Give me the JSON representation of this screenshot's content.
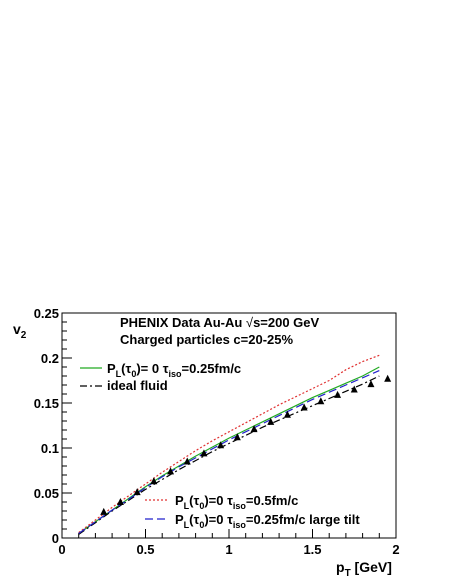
{
  "chart_data": {
    "type": "line",
    "title": "",
    "xlabel": "p_T [GeV]",
    "ylabel": "v_2",
    "xlim": [
      0,
      2
    ],
    "ylim": [
      0,
      0.25
    ],
    "x_ticks": [
      "0",
      "0.5",
      "1",
      "1.5",
      "2"
    ],
    "y_ticks": [
      "0",
      "0.05",
      "0.1",
      "0.15",
      "0.2",
      "0.25"
    ],
    "grid": false,
    "annotations": [
      "PHENIX Data Au-Au √s=200 GeV",
      "Charged particles   c=20-25%"
    ],
    "legend_top": [
      {
        "series": 0,
        "label": "P_L(τ_0)= 0  τ_iso=0.25fm/c"
      },
      {
        "series": 1,
        "label": "ideal fluid"
      }
    ],
    "legend_bottom": [
      {
        "series": 2,
        "label": "P_L(τ_0)=0  τ_iso=0.5fm/c"
      },
      {
        "series": 3,
        "label": "P_L(τ_0)=0  τ_iso=0.25fm/c  large tilt"
      }
    ],
    "series": [
      {
        "style": "solid",
        "color": "#22aa22",
        "x": [
          0.1,
          0.2,
          0.3,
          0.4,
          0.5,
          0.6,
          0.7,
          0.8,
          0.9,
          1.0,
          1.1,
          1.2,
          1.3,
          1.4,
          1.5,
          1.6,
          1.7,
          1.8,
          1.9
        ],
        "y": [
          0.005,
          0.018,
          0.031,
          0.044,
          0.057,
          0.069,
          0.08,
          0.091,
          0.101,
          0.111,
          0.12,
          0.129,
          0.138,
          0.147,
          0.156,
          0.164,
          0.172,
          0.18,
          0.19
        ]
      },
      {
        "style": "dashdot",
        "color": "#000000",
        "x": [
          0.1,
          0.2,
          0.3,
          0.4,
          0.5,
          0.6,
          0.7,
          0.8,
          0.9,
          1.0,
          1.1,
          1.2,
          1.3,
          1.4,
          1.5,
          1.6,
          1.7,
          1.8,
          1.9
        ],
        "y": [
          0.004,
          0.017,
          0.03,
          0.042,
          0.054,
          0.065,
          0.076,
          0.086,
          0.096,
          0.105,
          0.114,
          0.123,
          0.131,
          0.139,
          0.147,
          0.155,
          0.163,
          0.171,
          0.18
        ]
      },
      {
        "style": "dotted",
        "color": "#e03030",
        "x": [
          0.1,
          0.2,
          0.3,
          0.4,
          0.5,
          0.6,
          0.7,
          0.8,
          0.9,
          1.0,
          1.1,
          1.2,
          1.3,
          1.4,
          1.5,
          1.6,
          1.7,
          1.8,
          1.9
        ],
        "y": [
          0.006,
          0.02,
          0.034,
          0.047,
          0.06,
          0.073,
          0.085,
          0.097,
          0.108,
          0.118,
          0.128,
          0.138,
          0.148,
          0.157,
          0.166,
          0.175,
          0.187,
          0.196,
          0.203
        ]
      },
      {
        "style": "dashed",
        "color": "#2222cc",
        "x": [
          0.1,
          0.2,
          0.3,
          0.4,
          0.5,
          0.6,
          0.7,
          0.8,
          0.9,
          1.0,
          1.1,
          1.2,
          1.3,
          1.4,
          1.5,
          1.6,
          1.7,
          1.8,
          1.9
        ],
        "y": [
          0.005,
          0.018,
          0.031,
          0.043,
          0.056,
          0.068,
          0.079,
          0.089,
          0.099,
          0.109,
          0.118,
          0.127,
          0.136,
          0.145,
          0.154,
          0.162,
          0.17,
          0.178,
          0.186
        ]
      }
    ],
    "data_points": {
      "marker": "filled-triangle",
      "color": "#000000",
      "x": [
        0.25,
        0.35,
        0.45,
        0.55,
        0.65,
        0.75,
        0.85,
        0.95,
        1.05,
        1.15,
        1.25,
        1.35,
        1.45,
        1.55,
        1.65,
        1.75,
        1.85,
        1.95
      ],
      "y": [
        0.029,
        0.04,
        0.051,
        0.063,
        0.074,
        0.085,
        0.094,
        0.103,
        0.112,
        0.121,
        0.129,
        0.137,
        0.145,
        0.152,
        0.159,
        0.165,
        0.171,
        0.177
      ]
    }
  }
}
